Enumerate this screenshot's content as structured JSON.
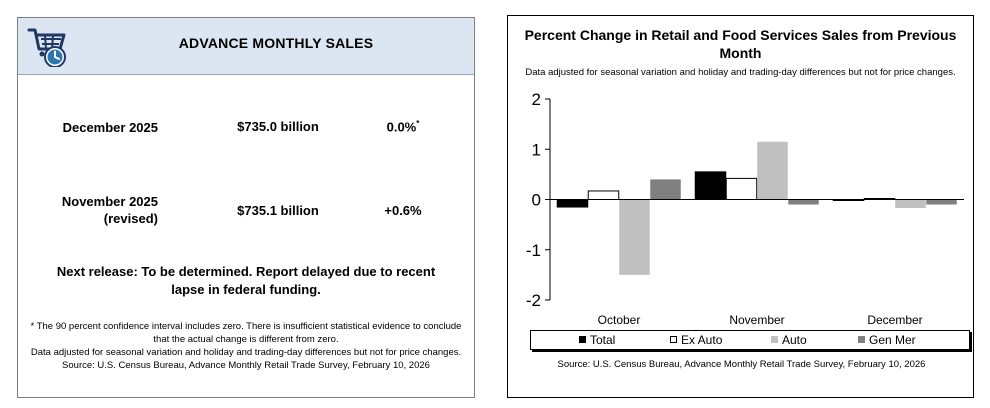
{
  "summary": {
    "title": "ADVANCE MONTHLY SALES",
    "logo_icon": "shopping-cart-clock-icon",
    "rows": [
      {
        "label": "December 2025",
        "value": "$735.0 billion",
        "change": "0.0%",
        "mark": "*"
      },
      {
        "label_line1": "November 2025",
        "label_line2": "(revised)",
        "value": "$735.1 billion",
        "change": "+0.6%"
      }
    ],
    "next_release": "Next release: To be determined. Report delayed due to recent lapse in federal funding.",
    "footnote_ci": "* The 90 percent confidence interval includes zero. There is insufficient statistical evidence to conclude that the actual change is different from zero.",
    "footnote_source": "Data adjusted for seasonal variation and holiday and trading-day differences but not for price changes. Source: U.S. Census Bureau, Advance Monthly Retail Trade Survey, February 10, 2026"
  },
  "chart_data": {
    "type": "bar",
    "title": "Percent Change in Retail and Food Services Sales from Previous Month",
    "subtitle": "Data adjusted for seasonal variation and holiday and trading-day differences but not for price changes.",
    "categories": [
      "October",
      "November",
      "December"
    ],
    "series": [
      {
        "name": "Total",
        "values": [
          -0.15,
          0.55,
          -0.02
        ]
      },
      {
        "name": "Ex Auto",
        "values": [
          0.17,
          0.42,
          0.02
        ]
      },
      {
        "name": "Auto",
        "values": [
          -1.5,
          1.15,
          -0.17
        ]
      },
      {
        "name": "Gen Mer",
        "values": [
          0.4,
          -0.1,
          -0.1
        ]
      }
    ],
    "series_colors": [
      "#000000",
      "#ffffff",
      "#c0c0c0",
      "#808080"
    ],
    "ylim": [
      -2,
      2
    ],
    "yticks": [
      "2",
      "1",
      "0",
      "-1",
      "-2"
    ],
    "xlabel": "",
    "ylabel": "",
    "grid": false,
    "legend_position": "bottom",
    "source": "Source: U.S. Census Bureau, Advance Monthly Retail Trade Survey, February 10, 2026"
  }
}
